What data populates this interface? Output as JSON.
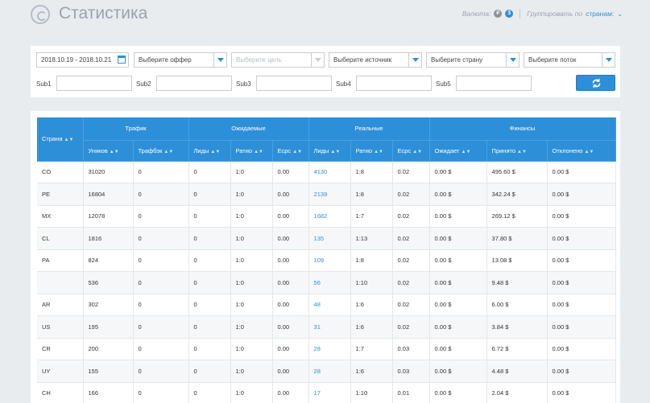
{
  "header": {
    "title": "Статистика",
    "currency_label": "Валюта:",
    "currency_options": [
      "₽",
      "$"
    ],
    "group_label": "Группировать по",
    "group_value": "странам:"
  },
  "filters": {
    "date_range": "2018.10.19 - 2018.10.21",
    "offer_placeholder": "Выберите оффер",
    "goal_placeholder": "Выберите цель",
    "source_placeholder": "Выберите источник",
    "country_placeholder": "Выберите страну",
    "stream_placeholder": "Выберите поток",
    "sub_labels": [
      "Sub1",
      "Sub2",
      "Sub3",
      "Sub4",
      "Sub5"
    ],
    "sub_values": [
      "",
      "",
      "",
      "",
      ""
    ]
  },
  "table": {
    "country_header": "Страна",
    "groups": [
      "Трафик",
      "Ожидаемые",
      "Реальные",
      "Финансы"
    ],
    "subheaders": [
      "Уников",
      "Трафбэк",
      "Лиды",
      "Ратио",
      "Ecpc",
      "Лиды",
      "Ратио",
      "Ecpc",
      "Ожидает",
      "Принято",
      "Отклонено"
    ],
    "rows": [
      {
        "country": "CO",
        "uniques": "31020",
        "trafback": "0",
        "exp_leads": "0",
        "exp_ratio": "1:0",
        "exp_ecpc": "0.00",
        "real_leads": "4130",
        "real_ratio": "1:8",
        "real_ecpc": "0.02",
        "waiting": "0.00 $",
        "accepted": "495.60 $",
        "rejected": "0.00 $"
      },
      {
        "country": "PE",
        "uniques": "16804",
        "trafback": "0",
        "exp_leads": "0",
        "exp_ratio": "1:0",
        "exp_ecpc": "0.00",
        "real_leads": "2139",
        "real_ratio": "1:8",
        "real_ecpc": "0.02",
        "waiting": "0.00 $",
        "accepted": "342.24 $",
        "rejected": "0.00 $"
      },
      {
        "country": "MX",
        "uniques": "12078",
        "trafback": "0",
        "exp_leads": "0",
        "exp_ratio": "1:0",
        "exp_ecpc": "0.00",
        "real_leads": "1682",
        "real_ratio": "1:7",
        "real_ecpc": "0.02",
        "waiting": "0.00 $",
        "accepted": "269.12 $",
        "rejected": "0.00 $"
      },
      {
        "country": "CL",
        "uniques": "1816",
        "trafback": "0",
        "exp_leads": "0",
        "exp_ratio": "1:0",
        "exp_ecpc": "0.00",
        "real_leads": "135",
        "real_ratio": "1:13",
        "real_ecpc": "0.02",
        "waiting": "0.00 $",
        "accepted": "37.80 $",
        "rejected": "0.00 $"
      },
      {
        "country": "PA",
        "uniques": "824",
        "trafback": "0",
        "exp_leads": "0",
        "exp_ratio": "1:0",
        "exp_ecpc": "0.00",
        "real_leads": "109",
        "real_ratio": "1:8",
        "real_ecpc": "0.02",
        "waiting": "0.00 $",
        "accepted": "13.08 $",
        "rejected": "0.00 $"
      },
      {
        "country": "",
        "uniques": "536",
        "trafback": "0",
        "exp_leads": "0",
        "exp_ratio": "1:0",
        "exp_ecpc": "0.00",
        "real_leads": "56",
        "real_ratio": "1:10",
        "real_ecpc": "0.02",
        "waiting": "0.00 $",
        "accepted": "9.48 $",
        "rejected": "0.00 $"
      },
      {
        "country": "AR",
        "uniques": "302",
        "trafback": "0",
        "exp_leads": "0",
        "exp_ratio": "1:0",
        "exp_ecpc": "0.00",
        "real_leads": "48",
        "real_ratio": "1:6",
        "real_ecpc": "0.02",
        "waiting": "0.00 $",
        "accepted": "6.00 $",
        "rejected": "0.00 $"
      },
      {
        "country": "US",
        "uniques": "195",
        "trafback": "0",
        "exp_leads": "0",
        "exp_ratio": "1:0",
        "exp_ecpc": "0.00",
        "real_leads": "31",
        "real_ratio": "1:6",
        "real_ecpc": "0.02",
        "waiting": "0.00 $",
        "accepted": "3.84 $",
        "rejected": "0.00 $"
      },
      {
        "country": "CR",
        "uniques": "200",
        "trafback": "0",
        "exp_leads": "0",
        "exp_ratio": "1:0",
        "exp_ecpc": "0.00",
        "real_leads": "28",
        "real_ratio": "1:7",
        "real_ecpc": "0.03",
        "waiting": "0.00 $",
        "accepted": "6.72 $",
        "rejected": "0.00 $"
      },
      {
        "country": "UY",
        "uniques": "155",
        "trafback": "0",
        "exp_leads": "0",
        "exp_ratio": "1:0",
        "exp_ecpc": "0.00",
        "real_leads": "28",
        "real_ratio": "1:6",
        "real_ecpc": "0.03",
        "waiting": "0.00 $",
        "accepted": "4.48 $",
        "rejected": "0.00 $"
      },
      {
        "country": "CH",
        "uniques": "166",
        "trafback": "0",
        "exp_leads": "0",
        "exp_ratio": "1:0",
        "exp_ecpc": "0.00",
        "real_leads": "17",
        "real_ratio": "1:10",
        "real_ecpc": "0.01",
        "waiting": "0.00 $",
        "accepted": "2.04 $",
        "rejected": "0.00 $"
      }
    ]
  }
}
